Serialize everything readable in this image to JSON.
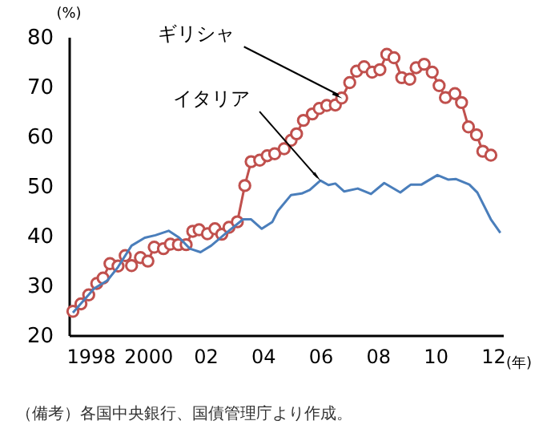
{
  "chart_data": {
    "type": "line",
    "ylabel": "(%)",
    "xlabel": "(年)",
    "xlim": [
      1997.25,
      2012.35
    ],
    "ylim": [
      20,
      80
    ],
    "yticks": [
      20,
      30,
      40,
      50,
      60,
      70,
      80
    ],
    "xticks": [
      {
        "value": 1998,
        "label": "1998"
      },
      {
        "value": 2000,
        "label": "2000"
      },
      {
        "value": 2002,
        "label": "02"
      },
      {
        "value": 2004,
        "label": "04"
      },
      {
        "value": 2006,
        "label": "06"
      },
      {
        "value": 2008,
        "label": "08"
      },
      {
        "value": 2010,
        "label": "10"
      },
      {
        "value": 2012,
        "label": "12"
      }
    ],
    "grid": false,
    "series": [
      {
        "color": "#c0504d",
        "marker": "circle",
        "x": [
          1997.39,
          1997.67,
          1997.94,
          1998.22,
          1998.44,
          1998.68,
          1998.96,
          1999.21,
          1999.43,
          1999.74,
          2000.0,
          2000.22,
          2000.54,
          2000.78,
          2001.06,
          2001.33,
          2001.56,
          2001.78,
          2002.07,
          2002.33,
          2002.57,
          2002.82,
          2003.11,
          2003.37,
          2003.59,
          2003.89,
          2004.15,
          2004.41,
          2004.74,
          2004.98,
          2005.17,
          2005.41,
          2005.72,
          2005.96,
          2006.22,
          2006.52,
          2006.74,
          2007.02,
          2007.26,
          2007.52,
          2007.8,
          2008.07,
          2008.31,
          2008.56,
          2008.83,
          2009.11,
          2009.33,
          2009.61,
          2009.89,
          2010.13,
          2010.35,
          2010.68,
          2010.91,
          2011.15,
          2011.43,
          2011.65,
          2011.93
        ],
        "values": [
          24.8,
          26.3,
          28.1,
          30.4,
          31.5,
          34.4,
          33.9,
          36.0,
          34.0,
          35.6,
          34.9,
          37.7,
          37.4,
          38.3,
          38.2,
          38.2,
          40.9,
          41.2,
          40.4,
          41.4,
          40.3,
          41.7,
          42.8,
          50.1,
          54.9,
          55.2,
          56.1,
          56.5,
          57.5,
          59.2,
          60.5,
          63.2,
          64.5,
          65.6,
          66.2,
          66.3,
          67.7,
          70.8,
          73.1,
          74.0,
          72.9,
          73.4,
          76.5,
          75.8,
          71.8,
          71.5,
          73.8,
          74.5,
          72.9,
          70.2,
          67.8,
          68.6,
          66.8,
          61.9,
          60.3,
          57.0,
          56.2
        ]
      },
      {
        "color": "#4a7ebb",
        "marker": "none",
        "x": [
          1997.39,
          1998.13,
          1998.59,
          1998.96,
          1999.43,
          1999.89,
          2000.26,
          2000.72,
          2001.09,
          2001.46,
          2001.83,
          2002.2,
          2002.67,
          2003.31,
          2003.59,
          2003.96,
          2004.33,
          2004.52,
          2004.98,
          2005.35,
          2005.63,
          2006.0,
          2006.28,
          2006.52,
          2006.83,
          2007.3,
          2007.76,
          2008.22,
          2008.78,
          2009.15,
          2009.52,
          2010.07,
          2010.44,
          2010.72,
          2011.18,
          2011.46,
          2011.93,
          2012.26
        ],
        "values": [
          24.5,
          29.4,
          31.0,
          33.7,
          38.0,
          39.6,
          40.1,
          41.0,
          39.6,
          37.4,
          36.7,
          38.0,
          40.3,
          43.3,
          43.3,
          41.4,
          42.8,
          45.0,
          48.2,
          48.5,
          49.2,
          51.1,
          50.2,
          50.5,
          48.9,
          49.5,
          48.4,
          50.6,
          48.7,
          50.3,
          50.3,
          52.2,
          51.3,
          51.4,
          50.3,
          48.7,
          43.3,
          40.6
        ]
      }
    ],
    "annotations": [
      {
        "text": "ギリシャ",
        "x": 2006.74,
        "y": 67.7
      },
      {
        "text": "イタリア",
        "x": 2006.0,
        "y": 51.1
      },
      "（備考）各国中央銀行、国債管理庁より作成。"
    ]
  }
}
